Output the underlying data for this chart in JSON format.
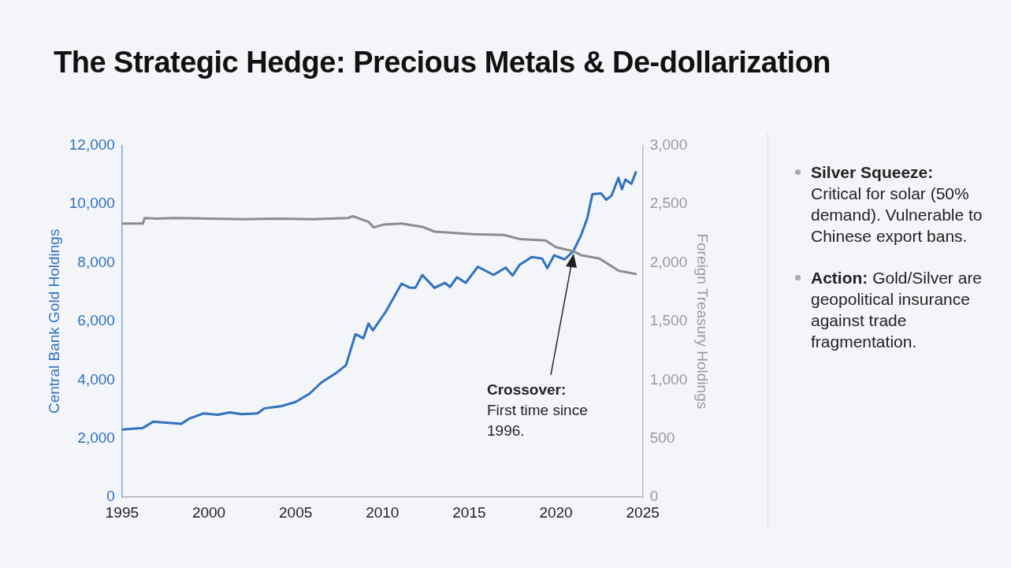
{
  "chart_data": {
    "type": "line",
    "title": "The Strategic Hedge: Precious Metals & De-dollarization",
    "ylabel": "Central Bank Gold Holdings",
    "y2label": "Foreign Treasury Holdings",
    "xlim": [
      1995,
      2025
    ],
    "xticks": [
      1995,
      2000,
      2005,
      2010,
      2015,
      2020,
      2025
    ],
    "ylim": [
      0,
      12000
    ],
    "yticks": [
      0,
      {
        "value": 2000,
        "label": "2,000"
      },
      {
        "value": 4000,
        "label": "4,000"
      },
      {
        "value": 6000,
        "label": "6,000"
      },
      {
        "value": 8000,
        "label": "8,000"
      },
      {
        "value": 10000,
        "label": "10,000"
      },
      {
        "value": 12000,
        "label": "12,000"
      }
    ],
    "y2lim": [
      0,
      3000
    ],
    "y2ticks": [
      0,
      500,
      {
        "value": 1000,
        "label": "1,000"
      },
      {
        "value": 1500,
        "label": "1,500"
      },
      {
        "value": 2000,
        "label": "2,000"
      },
      {
        "value": 2500,
        "label": "2,500"
      },
      {
        "value": 3000,
        "label": "3,000"
      }
    ],
    "grid": false,
    "legend": false,
    "marker": "none",
    "line_style": "solid",
    "series": [
      {
        "color": "#8c8c8c",
        "axis": "y2",
        "x": [
          1995,
          1996.2,
          1996.3,
          1997,
          1998,
          2000,
          2002,
          2004,
          2006,
          2008,
          2008.3,
          2009.2,
          2009.5,
          2010.1,
          2011.1,
          2012.3,
          2013,
          2015.2,
          2017,
          2017.9,
          2019.4,
          2020,
          2021,
          2021.45,
          2022.5,
          2023.6,
          2024.6
        ],
        "values": [
          2333,
          2333,
          2380,
          2375,
          2380,
          2375,
          2370,
          2375,
          2370,
          2380,
          2395,
          2347,
          2300,
          2325,
          2333,
          2305,
          2264,
          2243,
          2236,
          2201,
          2188,
          2132,
          2097,
          2063,
          2035,
          1931,
          1903
        ]
      },
      {
        "color": "#2f72c0",
        "axis": "y",
        "x": [
          1995,
          1996.2,
          1996.8,
          1998.4,
          1998.9,
          1999.7,
          2000.5,
          2001.2,
          2001.9,
          2002.8,
          2003.2,
          2004.2,
          2005,
          2005.8,
          2006.5,
          2007.3,
          2007.9,
          2008.45,
          2008.9,
          2009.2,
          2009.45,
          2010.2,
          2011.1,
          2011.6,
          2011.9,
          2012.3,
          2013,
          2013.6,
          2013.9,
          2014.3,
          2014.8,
          2015.5,
          2016.4,
          2017.1,
          2017.5,
          2017.9,
          2018.6,
          2019.2,
          2019.5,
          2019.9,
          2020.5,
          2021,
          2021.45,
          2021.8,
          2022.1,
          2022.6,
          2022.9,
          2023.2,
          2023.6,
          2023.8,
          2024,
          2024.35,
          2024.6
        ],
        "values": [
          2310,
          2360,
          2580,
          2500,
          2690,
          2860,
          2810,
          2890,
          2830,
          2860,
          3030,
          3110,
          3250,
          3530,
          3920,
          4220,
          4500,
          5560,
          5420,
          5920,
          5690,
          6330,
          7280,
          7140,
          7140,
          7580,
          7140,
          7310,
          7170,
          7500,
          7310,
          7860,
          7580,
          7830,
          7560,
          7920,
          8190,
          8140,
          7810,
          8250,
          8110,
          8390,
          8940,
          9500,
          10330,
          10360,
          10140,
          10280,
          10890,
          10500,
          10830,
          10690,
          11080
        ]
      }
    ],
    "annotations": [
      "Crossover: First time since 1996.",
      "Silver Squeeze: Critical for solar (50% demand). Vulnerable to Chinese export bans.",
      "Action: Gold/Silver are geopolitical insurance against trade fragmentation."
    ]
  }
}
